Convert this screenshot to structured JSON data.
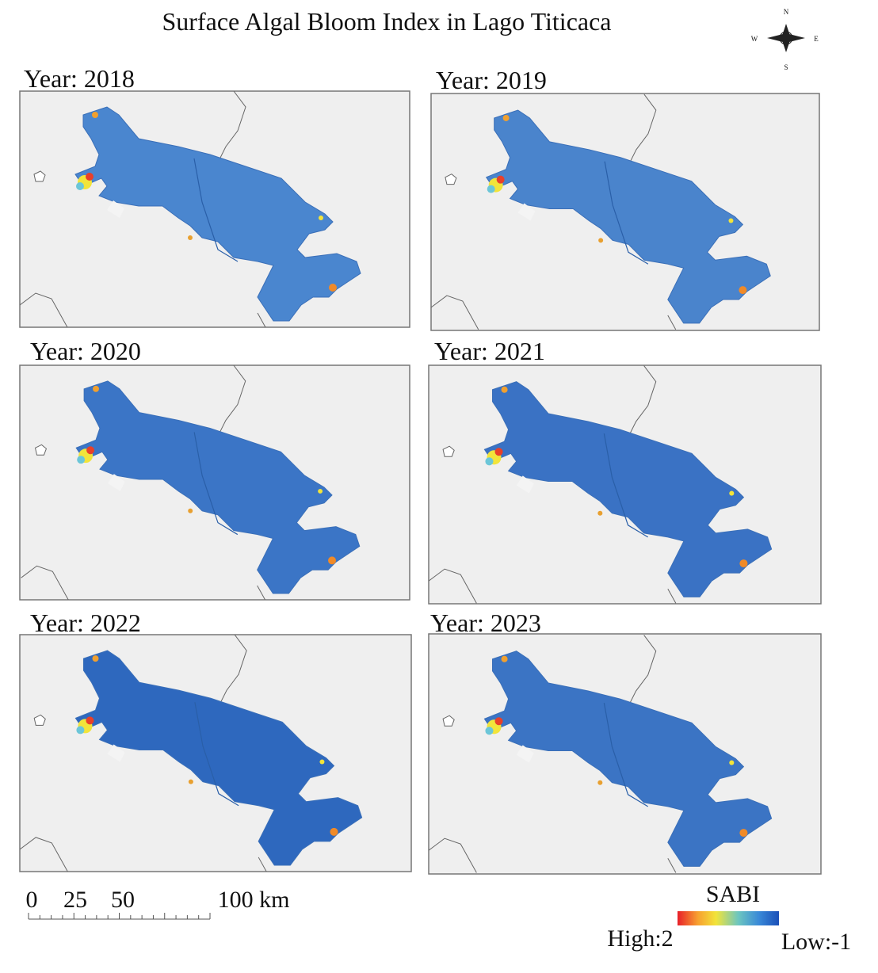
{
  "title": "Surface Algal Bloom Index in Lago Titicaca",
  "compass": {
    "n": "N",
    "s": "S",
    "e": "E",
    "w": "W"
  },
  "panels": [
    {
      "label": "Year: 2018"
    },
    {
      "label": "Year: 2019"
    },
    {
      "label": "Year: 2020"
    },
    {
      "label": "Year: 2021"
    },
    {
      "label": "Year: 2022"
    },
    {
      "label": "Year: 2023"
    }
  ],
  "scale_bar": {
    "labels": [
      "0",
      "25",
      "50",
      "100 km"
    ]
  },
  "legend": {
    "title": "SABI",
    "high": "High:2",
    "low": "Low:-1"
  }
}
